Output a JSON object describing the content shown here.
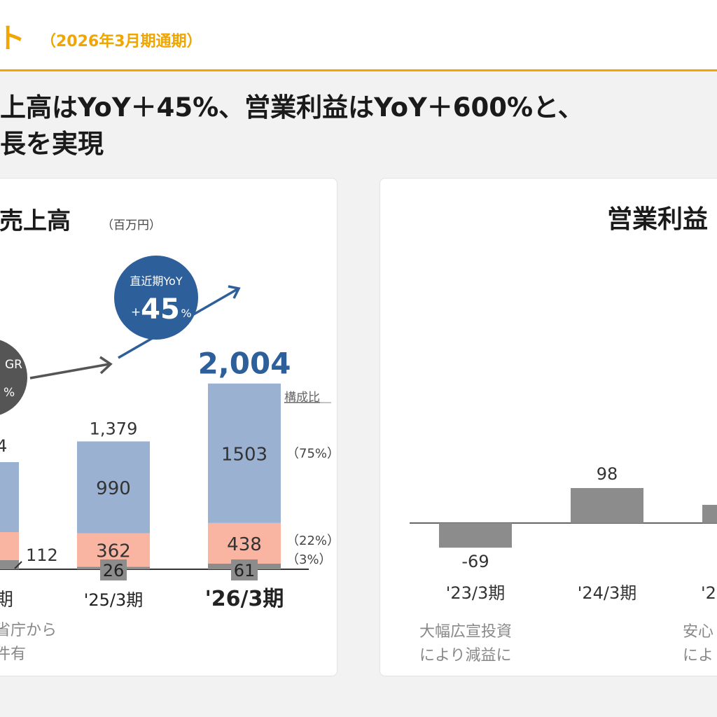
{
  "header": {
    "title": "ト",
    "period": "（2026年3月期通期）"
  },
  "headline": {
    "line1": "上高はYoY＋45%、営業利益はYoY＋600%と、",
    "line2": "長を実現"
  },
  "colors": {
    "accent": "#f0a500",
    "series_main": "#9bb1d1",
    "series_mid": "#f9b5a2",
    "series_small": "#8c8c8c",
    "profit_bar": "#8c8c8c",
    "yoy_circle": "#2d5f9a",
    "cagr_circle": "#555555",
    "total_highlight": "#2d5f9a"
  },
  "chart_data": [
    {
      "type": "bar",
      "stacked": true,
      "title": "売上高",
      "unit": "（百万円）",
      "categories": [
        "'25/3期",
        "'26/3期"
      ],
      "partial_category_label": "期",
      "partial_total_label": "4",
      "series": [
        {
          "values": [
            990,
            1503
          ],
          "share": "（75%）"
        },
        {
          "values": [
            362,
            438
          ],
          "share": "（22%）"
        },
        {
          "values": [
            26,
            61
          ],
          "share": "（3%）"
        }
      ],
      "partial_segment_labels": [
        "112"
      ],
      "totals": [
        "1,379",
        "2,004"
      ],
      "composition_label": "構成比",
      "yoy_badge": {
        "label": "直近期YoY",
        "prefix": "+",
        "value": "45",
        "unit": "%"
      },
      "cagr_badge": {
        "label": "GR",
        "unit": "%"
      },
      "footnote_lines": [
        "省庁から",
        "件有"
      ]
    },
    {
      "type": "bar",
      "title": "営業利益",
      "categories": [
        "'23/3期",
        "'24/3期"
      ],
      "values": [
        -69,
        98
      ],
      "partial_category_label": "'2",
      "footnotes": [
        {
          "lines": [
            "大幅広宣投資",
            "により減益に"
          ]
        },
        {
          "lines": [
            "安心",
            "によ"
          ]
        }
      ]
    }
  ]
}
